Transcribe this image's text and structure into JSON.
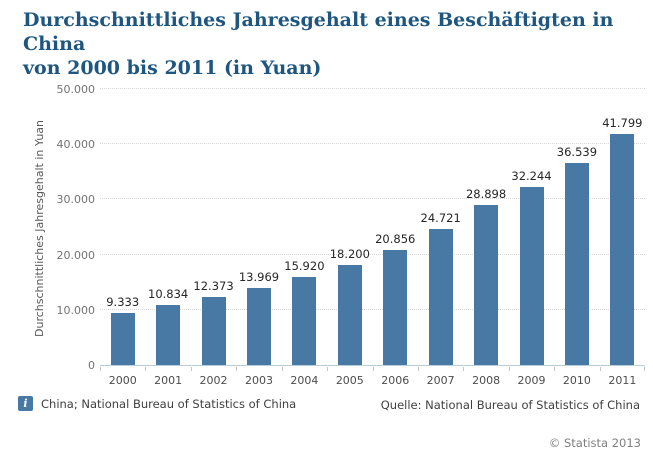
{
  "title": {
    "line1": "Durchschnittliches Jahresgehalt eines Beschäftigten in China",
    "line2": "von 2000 bis 2011 (in Yuan)"
  },
  "chart_data": {
    "type": "bar",
    "title": "Durchschnittliches Jahresgehalt eines Beschäftigten in China von 2000 bis 2011 (in Yuan)",
    "categories": [
      "2000",
      "2001",
      "2002",
      "2003",
      "2004",
      "2005",
      "2006",
      "2007",
      "2008",
      "2009",
      "2010",
      "2011"
    ],
    "values": [
      9333,
      10834,
      12373,
      13969,
      15920,
      18200,
      20856,
      24721,
      28898,
      32244,
      36539,
      41799
    ],
    "value_labels": [
      "9.333",
      "10.834",
      "12.373",
      "13.969",
      "15.920",
      "18.200",
      "20.856",
      "24.721",
      "28.898",
      "32.244",
      "36.539",
      "41.799"
    ],
    "xlabel": "",
    "ylabel": "Durchschnittliches Jahresgehalt in Yuan",
    "ylim": [
      0,
      50000
    ],
    "ytick_values": [
      0,
      10000,
      20000,
      30000,
      40000,
      50000
    ],
    "ytick_labels": [
      "0",
      "10.000",
      "20.000",
      "30.000",
      "40.000",
      "50.000"
    ],
    "grid": true,
    "legend": "none",
    "bar_color": "#4878a4"
  },
  "footer": {
    "left_text": "China; National Bureau of Statistics of China",
    "right_text": "Quelle: National Bureau of Statistics of China",
    "copyright": "© Statista 2013",
    "info_icon_glyph": "i"
  },
  "colors": {
    "title": "#1e567f",
    "bar": "#4878a4",
    "axis_line": "#b9cedd",
    "gridline": "#d9d9d9",
    "tick_text": "#737373",
    "value_text": "#262626",
    "footer_text": "#404040",
    "copyright_text": "#7f7f7f"
  }
}
